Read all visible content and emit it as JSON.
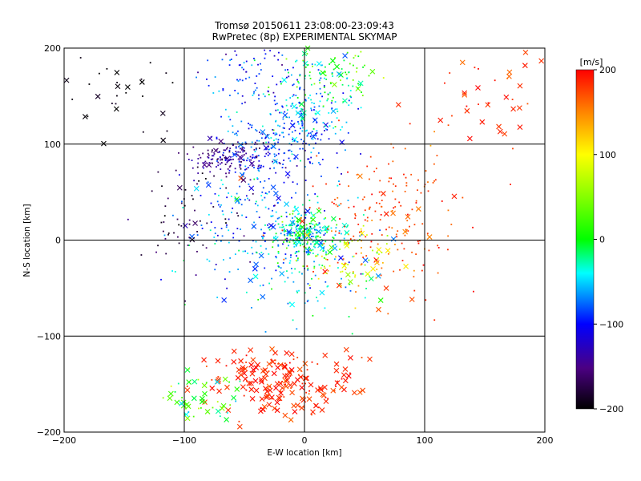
{
  "chart_data": {
    "type": "scatter",
    "title": "Tromsø 20150611 23:08:00-23:09:43",
    "subtitle": "RwPretec (8p) EXPERIMENTAL SKYMAP",
    "xlabel": "E-W location [km]",
    "ylabel": "N-S location [km]",
    "xlim": [
      -200,
      200
    ],
    "ylim": [
      -200,
      200
    ],
    "xticks": [
      -200,
      -100,
      0,
      100,
      200
    ],
    "yticks": [
      -200,
      -100,
      0,
      100,
      200
    ],
    "xtick_labels": [
      "−200",
      "−100",
      "0",
      "100",
      "200"
    ],
    "ytick_labels": [
      "−200",
      "−100",
      "0",
      "100",
      "200"
    ],
    "grid": true,
    "colorbar": {
      "label": "[m/s]",
      "range": [
        -200,
        200
      ],
      "ticks": [
        -200,
        -100,
        0,
        100,
        200
      ],
      "tick_labels": [
        "−200",
        "−100",
        "0",
        "100",
        "200"
      ],
      "colormap": "rainbow: black - purple - blue - cyan - green - yellow - red"
    },
    "markers": {
      "small": "velocity echo (dot)",
      "large": "velocity echo (x)"
    },
    "clusters": [
      {
        "cx": -65,
        "cy": 85,
        "sx": 18,
        "sy": 10,
        "n": 130,
        "vmu": -150,
        "vsd": 20,
        "xfrac": 0.1
      },
      {
        "cx": -30,
        "cy": 90,
        "sx": 25,
        "sy": 18,
        "n": 140,
        "vmu": -95,
        "vsd": 20,
        "xfrac": 0.1
      },
      {
        "cx": 0,
        "cy": 125,
        "sx": 22,
        "sy": 22,
        "n": 170,
        "vmu": -65,
        "vsd": 25,
        "xfrac": 0.12
      },
      {
        "cx": 20,
        "cy": 170,
        "sx": 22,
        "sy": 20,
        "n": 120,
        "vmu": 0,
        "vsd": 30,
        "xfrac": 0.12
      },
      {
        "cx": -40,
        "cy": 170,
        "sx": 25,
        "sy": 20,
        "n": 90,
        "vmu": -90,
        "vsd": 25,
        "xfrac": 0.1
      },
      {
        "cx": 0,
        "cy": 5,
        "sx": 12,
        "sy": 12,
        "n": 220,
        "vmu": -20,
        "vsd": 35,
        "xfrac": 0.1
      },
      {
        "cx": -35,
        "cy": 20,
        "sx": 35,
        "sy": 40,
        "n": 240,
        "vmu": -70,
        "vsd": 30,
        "xfrac": 0.08
      },
      {
        "cx": 5,
        "cy": -30,
        "sx": 28,
        "sy": 25,
        "n": 110,
        "vmu": -40,
        "vsd": 30,
        "xfrac": 0.08
      },
      {
        "cx": 65,
        "cy": 25,
        "sx": 32,
        "sy": 35,
        "n": 190,
        "vmu": 175,
        "vsd": 15,
        "xfrac": 0.1
      },
      {
        "cx": 30,
        "cy": -15,
        "sx": 20,
        "sy": 15,
        "n": 80,
        "vmu": 95,
        "vsd": 35,
        "xfrac": 0.15
      },
      {
        "cx": -20,
        "cy": -148,
        "sx": 30,
        "sy": 18,
        "n": 200,
        "vmu": 185,
        "vsd": 12,
        "xfrac": 0.65
      },
      {
        "cx": -85,
        "cy": -165,
        "sx": 15,
        "sy": 15,
        "n": 50,
        "vmu": 20,
        "vsd": 35,
        "xfrac": 0.6
      },
      {
        "cx": -90,
        "cy": 20,
        "sx": 20,
        "sy": 25,
        "n": 60,
        "vmu": -175,
        "vsd": 15,
        "xfrac": 0.05
      },
      {
        "cx": 150,
        "cy": 150,
        "sx": 30,
        "sy": 30,
        "n": 45,
        "vmu": 180,
        "vsd": 15,
        "xfrac": 0.5
      },
      {
        "cx": -150,
        "cy": 150,
        "sx": 20,
        "sy": 25,
        "n": 30,
        "vmu": -195,
        "vsd": 8,
        "xfrac": 0.3
      }
    ]
  }
}
